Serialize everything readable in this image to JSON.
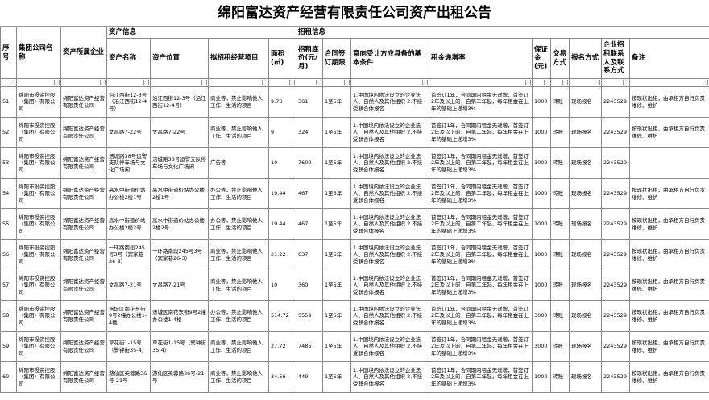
{
  "title": "绵阳富达资产经营有限责任公司资产出租公告",
  "group_headers": [
    "资产信息",
    "招租信息"
  ],
  "columns": [
    "序号",
    "集团公司名称",
    "资产所属企业",
    "资产名称",
    "资产位置",
    "拟招租经营项目",
    "面积(㎡)",
    "招租底价(元/月)",
    "合同签订期限",
    "意向受让方应具备的基本条件",
    "租金递增率",
    "保证金(元)",
    "交易方式",
    "报名方式",
    "企业招租联系人及联系方式",
    "备注"
  ],
  "rows": [
    [
      51,
      "绵阳市投资控股（集团）有限公司",
      "绵阳富达资产经营有限责任公司",
      "沿江西街12-3号（沿江西街12-4号）",
      "沿江西街12-3号（沿江西街12-4号）",
      "商业等，禁止影响他人工作、生活的项目",
      9.76,
      361,
      "1至5年",
      "1.中国境内依法设立的企业法人、自然人及其他组织 2.不接受联合体报名",
      "首签订1年，合同期内租金无递增，首签订2年及以上的，自第二年起，每年租金在上年的基础上递增3%",
      1000,
      "转账",
      "现场报名",
      2243529,
      "按现状出租，由承租方自行负责维修、维护"
    ],
    [
      52,
      "绵阳市投资控股（集团）有限公司",
      "绵阳富达资产经营有限责任公司",
      "文昌路7-22号",
      "文昌路7-22号",
      "商业等，禁止影响他人工作、生活的项目",
      9,
      324,
      "1至5年",
      "1.中国境内依法设立的企业法人、自然人及其他组织 2.不接受联合体报名",
      "首签订1年，合同期内租金无递增，首签订2年及以上的，自第二年起，每年租金在上年的基础上递增3%",
      1000,
      "转账",
      "现场报名",
      2243529,
      "按现状出租，由承租方自行负责维修、维护"
    ],
    [
      53,
      "绵阳市投资控股（集团）有限公司",
      "绵阳富达资产经营有限责任公司",
      "涪城路38号运警支队停车场与文化广场闲",
      "涪城路38号运警支队停车场与文化广场闲",
      "广告等",
      10,
      7600,
      "1至5年",
      "1.中国境内依法设立的企业法人、自然人及其他组织 2.不接受联合体报名",
      "首签订1年，合同期内租金无递增，首签订2年及以上的，自第二年起，每年租金在上年的基础上递增3%",
      3000,
      "转账",
      "现场报名",
      2243529,
      null
    ],
    [
      54,
      "绵阳市投资控股（集团）有限公司",
      "绵阳富达资产经营有限责任公司",
      "高水中街道价站办公楼2楼1号",
      "高水中街道价站办公楼2楼1号",
      "办公等，禁止影响他人工作、生活的项目",
      19.44,
      467,
      "1至5年",
      "1.中国境内依法设立的企业法人、自然人及其他组织 2.不接受联合体报名",
      "首签订1年，合同期内租金无递增，首签订2年及以上的，自第二年起，每年租金在上年的基础上递增3%",
      1000,
      "转账",
      "现场报名",
      2243529,
      "按现状出租，由承租方自行负责维修、维护"
    ],
    [
      55,
      "绵阳市投资控股（集团）有限公司",
      "绵阳富达资产经营有限责任公司",
      "高水中街道价站办公楼2楼2号",
      "高水中街道价站办公楼2楼2号",
      "办公等，禁止影响他人工作、生活的项目",
      19.44,
      467,
      "1至5年",
      "1.中国境内依法设立的企业法人、自然人及其他组织 2.不接受联合体报名",
      "首签订1年，合同期内租金无递增，首签订2年及以上的，自第二年起，每年租金在上年的基础上递增3%",
      1000,
      "转账",
      "现场报名",
      2243529,
      "按现状出租，由承租方自行负责维修、维护"
    ],
    [
      56,
      "绵阳市投资控股（集团）有限公司",
      "绵阳富达资产经营有限责任公司",
      "一环路南段245号3号（宾家巷26-3）",
      "一环路南段245号3号（宾家巷26-3）",
      "商业等，禁止影响他人工作、生活的项目",
      21.22,
      637,
      "1至5年",
      "1.中国境内依法设立的企业法人、自然人及其他组织 2.不接受联合体报名",
      "首签订1年，合同期内租金无递增，首签订2年及以上的，自第二年起，每年租金在上年的基础上递增3%",
      1000,
      "转账",
      "现场报名",
      2243529,
      "按现状出租，由承租方自行负责维修、维护"
    ],
    [
      57,
      "绵阳市投资控股（集团）有限公司",
      "绵阳富达资产经营有限责任公司",
      "文昌路7-21号",
      "文昌路7-21号",
      "商业等，禁止影响他人工作、生活的项目",
      10,
      360,
      "1至5年",
      "1.中国境内依法设立的企业法人、自然人及其他组织 2.不接受联合体报名",
      "首签订1年，合同期内租金无递增，首签订2年及以上的，自第二年起，每年租金在上年的基础上递增3%",
      1000,
      "转账",
      "现场报名",
      2243529,
      "按现状出租，由承租方自行负责维修、维护"
    ],
    [
      58,
      "绵阳市投资控股（集团）有限公司",
      "绵阳富达资产经营有限责任公司",
      "涪城区南花东街9号2幢办公楼1-4楼",
      "涪城区南花东街9号2幢办公楼1-4楼",
      "办公等，禁止影响他人工作、生活的项目",
      514.72,
      5559,
      "1至5年",
      "1.中国境内依法设立的企业法人、自然人及其他组织 2.不接受联合体报名",
      "首签订1年，合同期内租金无递增，首签订2年及以上的，自第二年起，每年租金在上年的基础上递增3%",
      3000,
      "转账",
      "现场报名",
      2243529,
      "按现状出租，由承租方自行负责维修、维护"
    ],
    [
      59,
      "绵阳市投资控股（集团）有限公司",
      "绵阳富达资产经营有限责任公司",
      "草花街1-15号（警钟街35-4）",
      "草花街1-15号（警钟街35-4）",
      "商业等，禁止影响他人工作、生活的项目",
      27.72,
      7485,
      "1至5年",
      "1.中国境内依法设立的企业法人、自然人及其他组织 2.不接受联合体报名",
      "首签订1年，合同期内租金无递增，首签订2年及以上的，自第二年起，每年租金在上年的基础上递增3%",
      3000,
      "转账",
      "现场报名",
      2243529,
      "按现状出租，由承租方自行负责维修、维护"
    ],
    [
      60,
      "绵阳市投资控股（集团）有限公司",
      "绵阳富达资产经营有限责任公司",
      "游仙区英蓉路36号-21号",
      "游仙区英蓉路36号-21号",
      "商业等，禁止影响他人工作、生活的项目",
      34.56,
      449,
      "1至5年",
      "1.中国境内依法设立的企业法人、自然人及其他组织 2.不接受联合体报名",
      "首签订1年，合同期内租金无递增，首签订2年及以上的，自第二年起，每年租金在上年的基础上递增3%",
      1000,
      "转账",
      "现场报名",
      2243529,
      "按现状出租，由承租方自行负责维修、维护"
    ]
  ]
}
